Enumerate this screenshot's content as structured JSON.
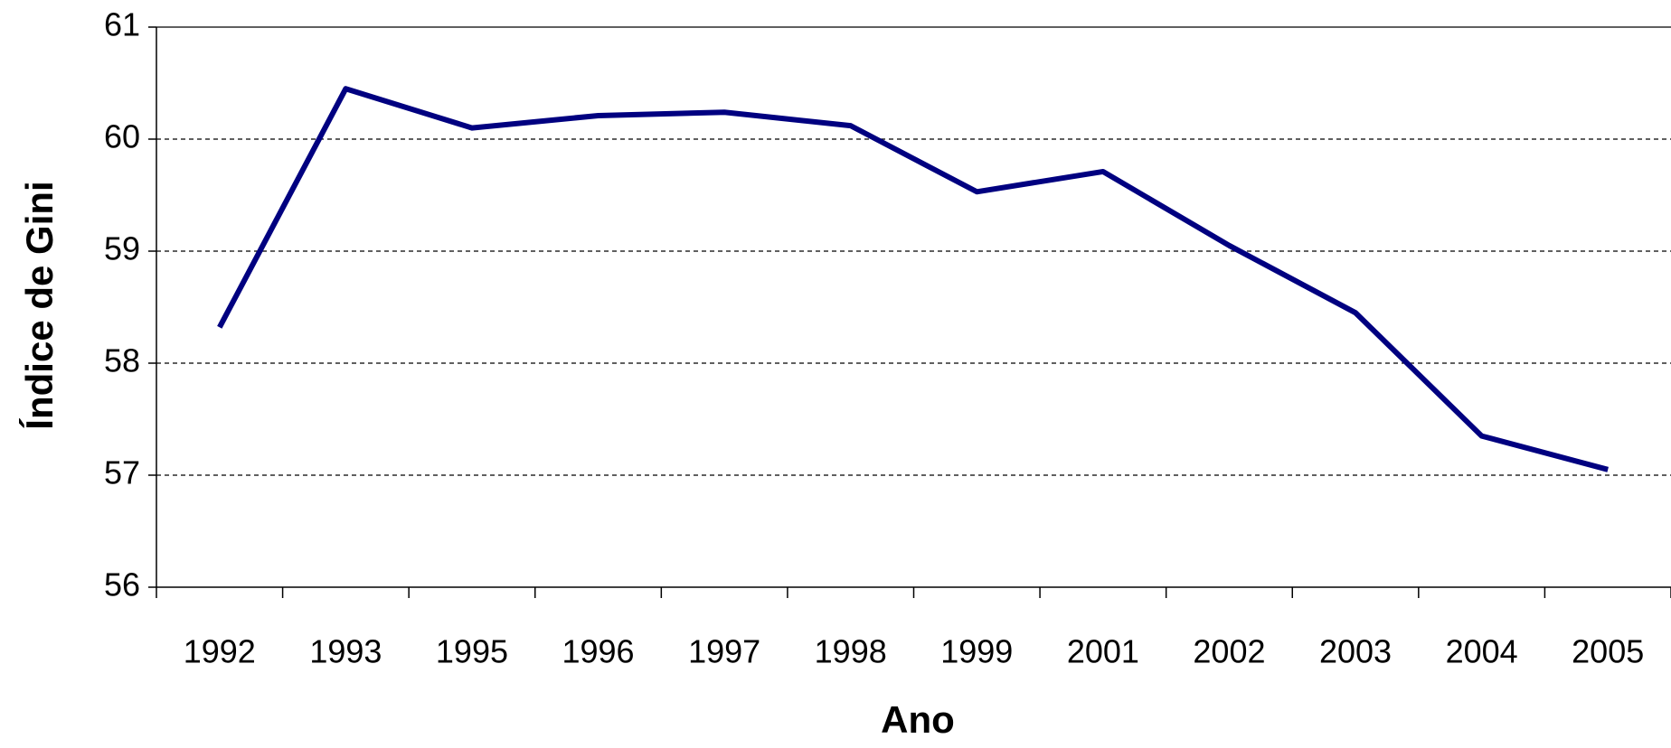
{
  "chart_data": {
    "type": "line",
    "x_label": "Ano",
    "y_label": "Índice de Gini",
    "categories": [
      "1992",
      "1993",
      "1995",
      "1996",
      "1997",
      "1998",
      "1999",
      "2001",
      "2002",
      "2003",
      "2004",
      "2005"
    ],
    "values": [
      58.32,
      60.45,
      60.1,
      60.21,
      60.24,
      60.12,
      59.53,
      59.71,
      59.05,
      58.45,
      57.35,
      57.05
    ],
    "color": "#000080",
    "ylim": [
      56,
      61
    ],
    "yticks": [
      56,
      57,
      58,
      59,
      60,
      61
    ],
    "grid": true
  }
}
